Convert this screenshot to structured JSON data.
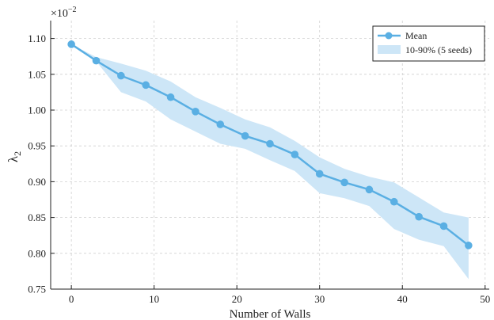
{
  "chart_data": {
    "type": "line",
    "xlabel": "Number of Walls",
    "ylabel": "λ",
    "ylabel_subscript": "2",
    "y_scale_label": "×10",
    "y_scale_exponent": "−2",
    "xlim": [
      -2.5,
      50.5
    ],
    "ylim": [
      0.75,
      1.125
    ],
    "x_ticks": [
      0,
      10,
      20,
      30,
      40,
      50
    ],
    "x_tick_labels": [
      "0",
      "10",
      "20",
      "30",
      "40",
      "50"
    ],
    "y_ticks": [
      0.75,
      0.8,
      0.85,
      0.9,
      0.95,
      1.0,
      1.05,
      1.1
    ],
    "y_tick_labels": [
      "0.75",
      "0.80",
      "0.85",
      "0.90",
      "0.95",
      "1.00",
      "1.05",
      "1.10"
    ],
    "grid": true,
    "legend_position": "top-right",
    "series": [
      {
        "name": "Mean",
        "kind": "line-marker",
        "color": "#5aafe3",
        "x": [
          0,
          3,
          6,
          9,
          12,
          15,
          18,
          21,
          24,
          27,
          30,
          33,
          36,
          39,
          42,
          45,
          48
        ],
        "y": [
          1.092,
          1.069,
          1.048,
          1.035,
          1.018,
          0.998,
          0.98,
          0.964,
          0.953,
          0.938,
          0.911,
          0.899,
          0.889,
          0.872,
          0.851,
          0.838,
          0.811
        ]
      },
      {
        "name": "10-90% (5 seeds)",
        "kind": "band",
        "color": "#cde6f7",
        "x": [
          0,
          3,
          6,
          9,
          12,
          15,
          18,
          21,
          24,
          27,
          30,
          33,
          36,
          39,
          42,
          45,
          48
        ],
        "low": [
          1.092,
          1.068,
          1.025,
          1.012,
          0.987,
          0.97,
          0.953,
          0.946,
          0.93,
          0.915,
          0.884,
          0.877,
          0.866,
          0.834,
          0.819,
          0.81,
          0.764
        ],
        "high": [
          1.092,
          1.074,
          1.065,
          1.055,
          1.04,
          1.018,
          1.003,
          0.987,
          0.976,
          0.957,
          0.934,
          0.918,
          0.907,
          0.899,
          0.878,
          0.857,
          0.85
        ]
      }
    ]
  }
}
